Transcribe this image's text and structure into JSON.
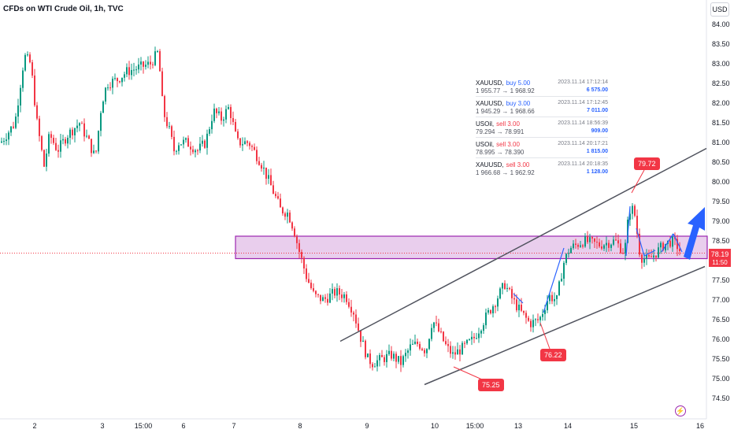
{
  "header": {
    "title": "CFDs on WTI Crude Oil, 1h, TVC",
    "currency": "USD"
  },
  "price_axis": {
    "ticks": [
      "84.00",
      "83.50",
      "83.00",
      "82.50",
      "82.00",
      "81.50",
      "81.00",
      "80.50",
      "80.00",
      "79.50",
      "79.00",
      "78.50",
      "78.00",
      "77.50",
      "77.00",
      "76.50",
      "76.00",
      "75.50",
      "75.00",
      "74.50"
    ],
    "current_price": "78.19",
    "countdown": "11:50"
  },
  "time_axis": {
    "ticks": [
      "2",
      "3",
      "15:00",
      "6",
      "7",
      "8",
      "9",
      "10",
      "15:00",
      "13",
      "14",
      "15",
      "16"
    ]
  },
  "trades": [
    {
      "symbol": "XAUUSD,",
      "side": "buy 5.00",
      "side_type": "buy",
      "time": "2023.11.14 17:12:14",
      "prices": "1 955.77 → 1 968.92",
      "pnl": "6 575.00"
    },
    {
      "symbol": "XAUUSD,",
      "side": "buy 3.00",
      "side_type": "buy",
      "time": "2023.11.14 17:12:45",
      "prices": "1 945.29 → 1 968.66",
      "pnl": "7 011.00"
    },
    {
      "symbol": "USOil,",
      "side": "sell 3.00",
      "side_type": "sell",
      "time": "2023.11.14 18:56:39",
      "prices": "79.294 → 78.991",
      "pnl": "909.00"
    },
    {
      "symbol": "USOil,",
      "side": "sell 3.00",
      "side_type": "sell",
      "time": "2023.11.14 20:17:21",
      "prices": "78.995 → 78.390",
      "pnl": "1 815.00"
    },
    {
      "symbol": "XAUUSD,",
      "side": "sell 3.00",
      "side_type": "sell",
      "time": "2023.11.14 20:18:35",
      "prices": "1 966.68 → 1 962.92",
      "pnl": "1 128.00"
    }
  ],
  "callouts": {
    "high": "79.72",
    "mid": "76.22",
    "low": "75.25"
  },
  "colors": {
    "up": "#089981",
    "down": "#f23645",
    "zone_fill": "#e1bee7",
    "zone_border": "#9c27b0",
    "channel": "#50535e",
    "arrow": "#2962ff"
  },
  "chart_data": {
    "type": "candlestick",
    "title": "CFDs on WTI Crude Oil, 1h, TVC",
    "ylim": [
      74.2,
      84.3
    ],
    "close_path": [
      [
        0,
        81.0
      ],
      [
        18,
        81.5
      ],
      [
        30,
        83.2
      ],
      [
        38,
        83.0
      ],
      [
        46,
        81.5
      ],
      [
        55,
        80.4
      ],
      [
        62,
        81.2
      ],
      [
        72,
        80.8
      ],
      [
        85,
        81.2
      ],
      [
        100,
        81.5
      ],
      [
        112,
        81.0
      ],
      [
        120,
        80.6
      ],
      [
        128,
        82.0
      ],
      [
        135,
        82.5
      ],
      [
        148,
        82.6
      ],
      [
        160,
        82.8
      ],
      [
        175,
        82.9
      ],
      [
        190,
        83.0
      ],
      [
        200,
        83.3
      ],
      [
        206,
        81.8
      ],
      [
        214,
        81.3
      ],
      [
        220,
        80.8
      ],
      [
        226,
        81.0
      ],
      [
        236,
        81.0
      ],
      [
        250,
        80.8
      ],
      [
        260,
        81.0
      ],
      [
        270,
        81.8
      ],
      [
        280,
        81.6
      ],
      [
        290,
        81.9
      ],
      [
        300,
        81.0
      ],
      [
        315,
        81.0
      ],
      [
        330,
        80.5
      ],
      [
        345,
        79.8
      ],
      [
        355,
        79.3
      ],
      [
        365,
        79.2
      ],
      [
        372,
        78.8
      ],
      [
        378,
        78.3
      ],
      [
        388,
        77.6
      ],
      [
        398,
        77.1
      ],
      [
        410,
        77.0
      ],
      [
        425,
        77.2
      ],
      [
        438,
        77.1
      ],
      [
        448,
        76.7
      ],
      [
        456,
        76.1
      ],
      [
        466,
        75.5
      ],
      [
        472,
        75.4
      ],
      [
        484,
        75.5
      ],
      [
        496,
        75.6
      ],
      [
        508,
        75.4
      ],
      [
        520,
        75.8
      ],
      [
        530,
        75.9
      ],
      [
        540,
        75.7
      ],
      [
        548,
        76.5
      ],
      [
        556,
        76.2
      ],
      [
        566,
        75.8
      ],
      [
        574,
        75.6
      ],
      [
        588,
        75.8
      ],
      [
        600,
        76.0
      ],
      [
        614,
        76.5
      ],
      [
        626,
        76.9
      ],
      [
        640,
        77.4
      ],
      [
        650,
        77.0
      ],
      [
        660,
        76.7
      ],
      [
        672,
        76.4
      ],
      [
        684,
        76.5
      ],
      [
        696,
        77.1
      ],
      [
        706,
        77.0
      ],
      [
        714,
        77.9
      ],
      [
        722,
        78.3
      ],
      [
        740,
        78.5
      ],
      [
        760,
        78.4
      ],
      [
        780,
        78.5
      ],
      [
        792,
        78.2
      ],
      [
        798,
        79.3
      ],
      [
        804,
        79.3
      ],
      [
        812,
        78.1
      ],
      [
        822,
        78.0
      ],
      [
        832,
        78.2
      ],
      [
        842,
        78.4
      ],
      [
        852,
        78.5
      ],
      [
        858,
        78.4
      ],
      [
        864,
        78.19
      ]
    ],
    "zone": {
      "from": 78.05,
      "to": 78.62
    },
    "channel_upper": [
      [
        432,
        75.95
      ],
      [
        897,
        80.85
      ]
    ],
    "channel_lower": [
      [
        539,
        74.85
      ],
      [
        895,
        77.85
      ]
    ],
    "annotations": [
      {
        "label": "79.72",
        "price": 79.72
      },
      {
        "label": "76.22",
        "price": 76.22
      },
      {
        "label": "75.25",
        "price": 75.25
      }
    ],
    "current": 78.19
  }
}
